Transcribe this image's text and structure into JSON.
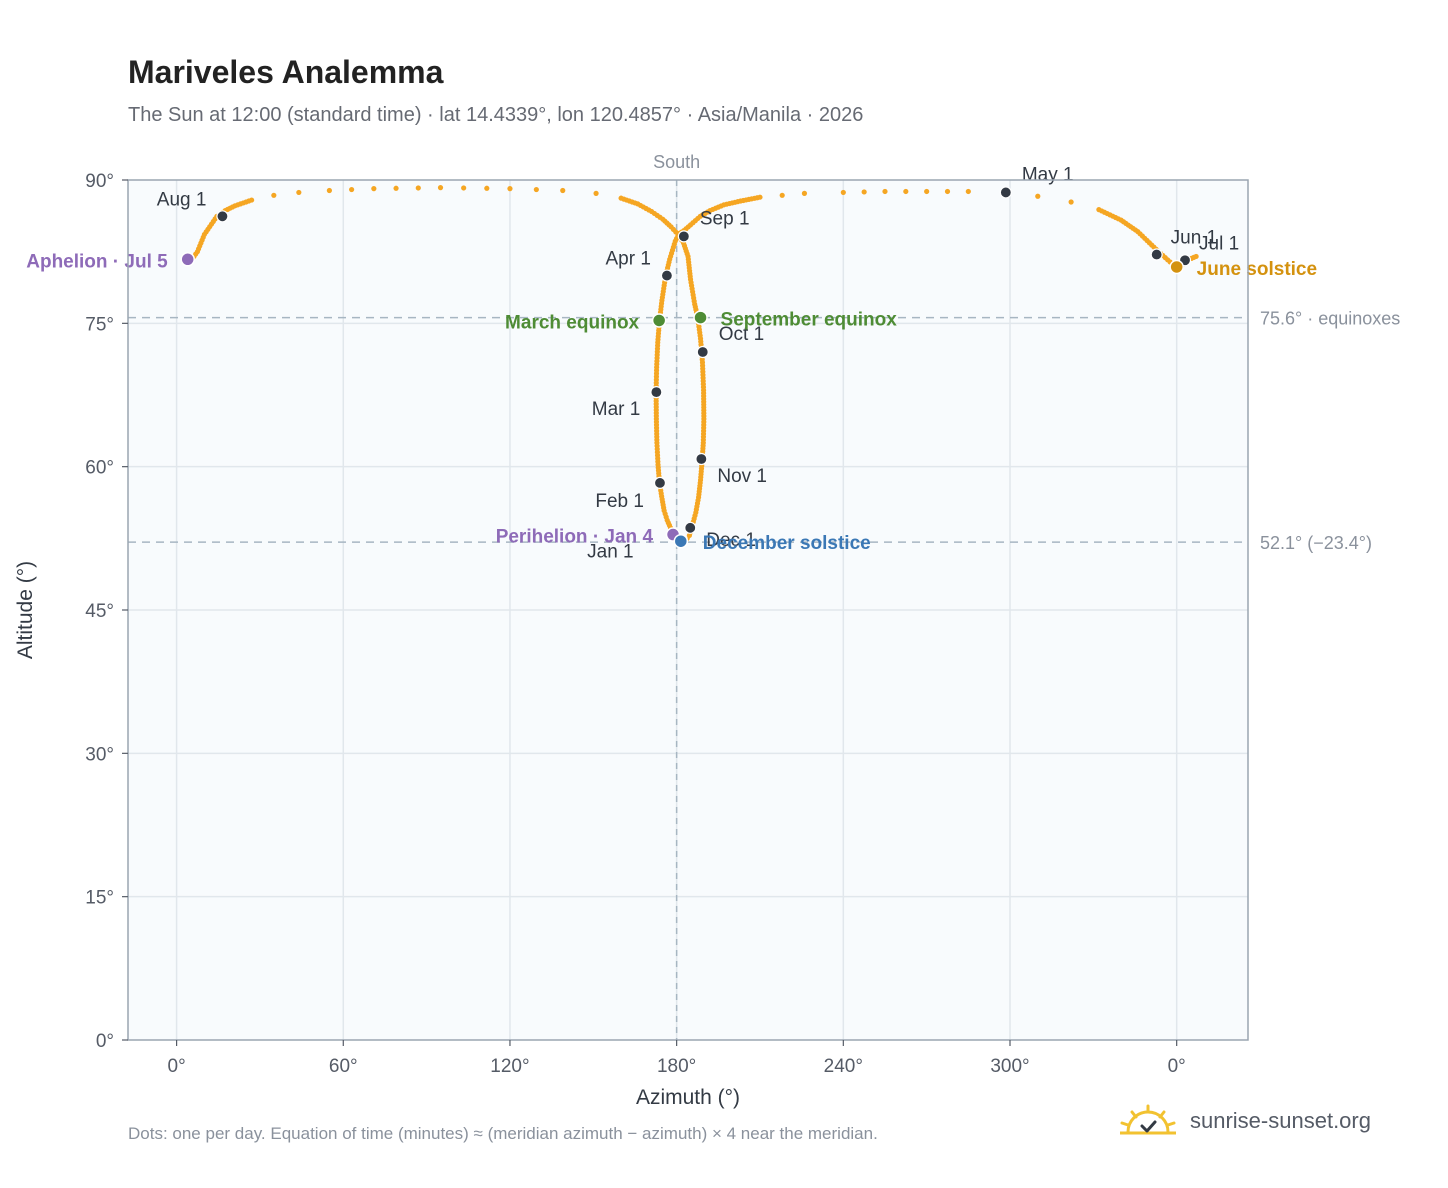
{
  "title": "Mariveles Analemma",
  "subtitle": "The Sun at 12:00 (standard time) · lat 14.4339°, lon 120.4857° · Asia/Manila · 2026",
  "footnote": "Dots: one per day. Equation of time (minutes) ≈ (meridian azimuth − azimuth) × 4 near the meridian.",
  "brand": {
    "text": "sunrise-sunset.org",
    "icon": "sun-icon"
  },
  "colors": {
    "curve": "#f5a623",
    "marker": "#333a44",
    "aphelion": "#8e6bb8",
    "equinox": "#4e8c35",
    "solstice_june": "#d4920f",
    "solstice_december": "#3b78b5",
    "reference": "#a7b6c2",
    "plot_bg": "#f8fbfd"
  },
  "chart_data": {
    "type": "scatter",
    "xlabel": "Azimuth (°)",
    "ylabel": "Altitude (°)",
    "x_ticks": [
      "0°",
      "60°",
      "120°",
      "180°",
      "240°",
      "300°",
      "0°"
    ],
    "y_ticks": [
      "0°",
      "15°",
      "30°",
      "45°",
      "60°",
      "75°",
      "90°"
    ],
    "xlim": [
      -17,
      386
    ],
    "ylim": [
      0,
      90
    ],
    "meridian": {
      "azimuth": 180,
      "label": "South"
    },
    "reference_lines": [
      {
        "altitude": 75.6,
        "label": "75.6° · equinoxes"
      },
      {
        "altitude": 52.1,
        "label": "52.1° (−23.4°)"
      }
    ],
    "series": [
      {
        "points": [
          [
            180.7,
            52.4
          ],
          [
            180.0,
            52.6
          ],
          [
            178.9,
            53.0
          ],
          [
            177.8,
            53.6
          ],
          [
            176.6,
            54.4
          ],
          [
            175.5,
            55.4
          ],
          [
            174.6,
            56.9
          ],
          [
            173.8,
            58.4
          ],
          [
            173.3,
            60.2
          ],
          [
            172.9,
            62.5
          ],
          [
            172.7,
            65.0
          ],
          [
            172.6,
            67.8
          ],
          [
            172.8,
            70.4
          ],
          [
            173.2,
            73.0
          ],
          [
            173.8,
            75.2
          ],
          [
            174.7,
            77.4
          ],
          [
            176.0,
            79.9
          ],
          [
            177.5,
            81.7
          ],
          [
            179.5,
            83.6
          ],
          [
            180.9,
            84.4
          ],
          [
            182.6,
            84.7
          ],
          [
            185.0,
            85.3
          ],
          [
            188.5,
            86.2
          ],
          [
            192.0,
            86.8
          ],
          [
            197.0,
            87.4
          ],
          [
            203.0,
            87.8
          ],
          [
            210.0,
            88.2
          ],
          [
            218.0,
            88.4
          ],
          [
            226.0,
            88.6
          ],
          [
            240.0,
            88.7
          ],
          [
            255.0,
            88.8
          ],
          [
            270.0,
            88.8
          ],
          [
            285.0,
            88.8
          ],
          [
            298.5,
            88.6
          ],
          [
            310.0,
            88.3
          ],
          [
            322.0,
            87.7
          ],
          [
            332.0,
            86.9
          ],
          [
            340.0,
            85.8
          ],
          [
            346.0,
            84.6
          ],
          [
            351.0,
            83.2
          ],
          [
            355.0,
            82.1
          ],
          [
            358.5,
            81.2
          ],
          [
            360.0,
            80.9
          ],
          [
            361.8,
            81.0
          ],
          [
            363.0,
            81.3
          ],
          [
            364.5,
            81.7
          ],
          [
            367.0,
            82.0
          ],
          [
            3.5,
            81.9
          ],
          [
            5.0,
            81.5
          ],
          [
            7.5,
            82.5
          ],
          [
            10.0,
            84.3
          ],
          [
            14.5,
            86.2
          ],
          [
            17.5,
            86.8
          ],
          [
            21.0,
            87.3
          ],
          [
            27.0,
            87.9
          ],
          [
            35.0,
            88.4
          ],
          [
            44.0,
            88.7
          ],
          [
            55.0,
            88.9
          ],
          [
            71.0,
            89.1
          ],
          [
            95.0,
            89.2
          ],
          [
            120.0,
            89.1
          ],
          [
            139.0,
            88.9
          ],
          [
            151.0,
            88.6
          ],
          [
            160.0,
            88.1
          ],
          [
            166.0,
            87.5
          ],
          [
            171.0,
            86.7
          ],
          [
            175.0,
            85.9
          ],
          [
            178.0,
            85.1
          ],
          [
            180.5,
            84.3
          ],
          [
            182.5,
            83.4
          ],
          [
            184.1,
            82.0
          ],
          [
            185.0,
            79.6
          ],
          [
            186.5,
            77.0
          ],
          [
            187.6,
            75.6
          ],
          [
            188.6,
            73.4
          ],
          [
            189.3,
            70.9
          ],
          [
            189.7,
            68.0
          ],
          [
            189.8,
            65.0
          ],
          [
            189.6,
            62.5
          ],
          [
            189.2,
            60.7
          ],
          [
            188.6,
            58.6
          ],
          [
            187.9,
            56.8
          ],
          [
            186.9,
            55.2
          ],
          [
            185.7,
            53.9
          ],
          [
            184.6,
            52.8
          ],
          [
            183.0,
            52.2
          ]
        ]
      }
    ],
    "monthly_markers": [
      {
        "label": "Jan 1",
        "azimuth": 181.8,
        "altitude": 52.4
      },
      {
        "label": "Feb 1",
        "azimuth": 174.0,
        "altitude": 58.3
      },
      {
        "label": "Mar 1",
        "azimuth": 172.7,
        "altitude": 67.8
      },
      {
        "label": "Apr 1",
        "azimuth": 176.5,
        "altitude": 80.0
      },
      {
        "label": "May 1",
        "azimuth": 298.5,
        "altitude": 88.7
      },
      {
        "label": "Jun 1",
        "azimuth": 352.8,
        "altitude": 82.2
      },
      {
        "label": "Jul 1",
        "azimuth": 363.0,
        "altitude": 81.6
      },
      {
        "label": "Aug 1",
        "azimuth": 16.5,
        "altitude": 86.2
      },
      {
        "label": "Sep 1",
        "azimuth": 182.6,
        "altitude": 84.1
      },
      {
        "label": "Oct 1",
        "azimuth": 189.4,
        "altitude": 72.0
      },
      {
        "label": "Nov 1",
        "azimuth": 188.9,
        "altitude": 60.8
      },
      {
        "label": "Dec 1",
        "azimuth": 184.9,
        "altitude": 53.6
      }
    ],
    "events": [
      {
        "label": "Aphelion · Jul 5",
        "azimuth": 4.0,
        "altitude": 81.7,
        "kind": "aphelion"
      },
      {
        "label": "Perihelion · Jan 4",
        "azimuth": 178.7,
        "altitude": 52.9,
        "kind": "aphelion"
      },
      {
        "label": "March equinox",
        "azimuth": 173.7,
        "altitude": 75.3,
        "kind": "equinox"
      },
      {
        "label": "September equinox",
        "azimuth": 188.6,
        "altitude": 75.6,
        "kind": "equinox"
      },
      {
        "label": "June solstice",
        "azimuth": 360.0,
        "altitude": 80.9,
        "kind": "solstice_june"
      },
      {
        "label": "December solstice",
        "azimuth": 181.5,
        "altitude": 52.2,
        "kind": "solstice_december"
      }
    ]
  }
}
